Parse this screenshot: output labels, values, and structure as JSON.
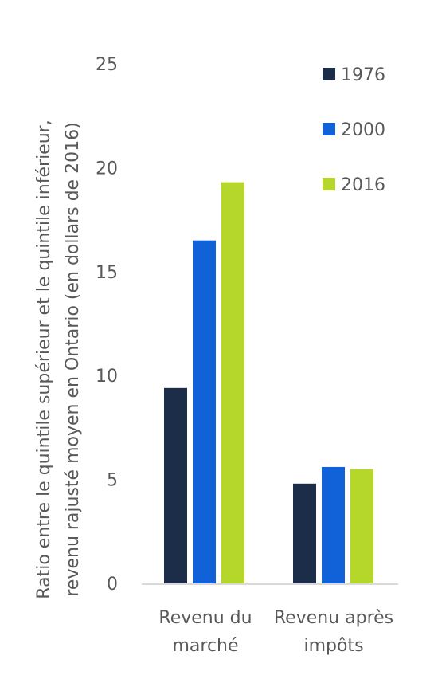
{
  "chart_data": {
    "type": "bar",
    "title": "",
    "ylabel": "Ratio entre le quintile supérieur et le quintile inférieur, revenu rajusté moyen en Ontario (en dollars de 2016)",
    "ylabel_lines": [
      "Ratio entre le quintile supérieur et le quintile inférieur,",
      "revenu rajusté moyen en Ontario (en dollars de 2016)"
    ],
    "xlabel": "",
    "ylim": [
      0,
      25
    ],
    "yticks": [
      "0",
      "5",
      "10",
      "15",
      "20",
      "25"
    ],
    "categories": [
      "Revenu du marché",
      "Revenu après impôts"
    ],
    "category_lines": [
      [
        "Revenu du",
        "marché"
      ],
      [
        "Revenu après",
        "impôts"
      ]
    ],
    "series": [
      {
        "name": "1976",
        "color": "#1c2d4a",
        "values": [
          9.4,
          4.8
        ]
      },
      {
        "name": "2000",
        "color": "#1162d9",
        "values": [
          16.5,
          5.6
        ]
      },
      {
        "name": "2016",
        "color": "#b5d72b",
        "values": [
          19.3,
          5.5
        ]
      }
    ],
    "legend_position": "top-right",
    "grid": false
  }
}
